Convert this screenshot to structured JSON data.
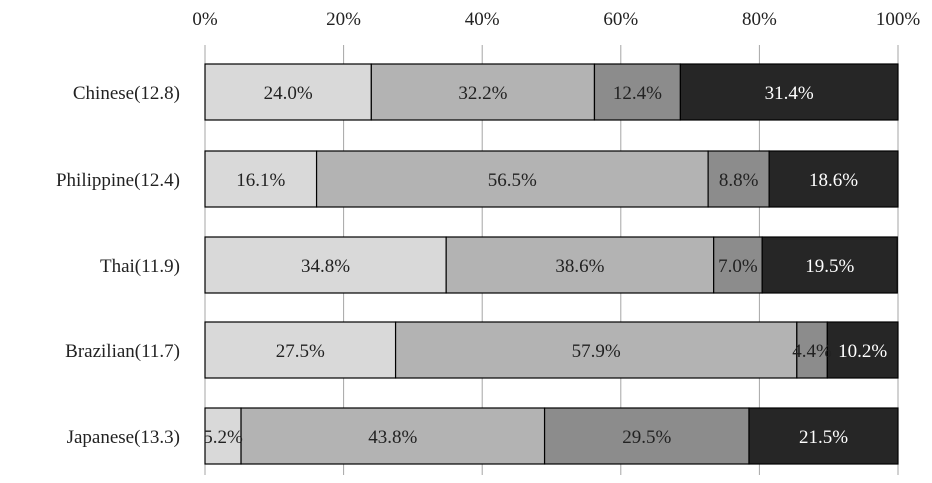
{
  "chart_data": {
    "type": "bar",
    "orientation": "horizontal",
    "stacked": true,
    "normalized": true,
    "x_tick_labels": [
      "0%",
      "20%",
      "40%",
      "60%",
      "80%",
      "100%"
    ],
    "xlim": [
      0,
      100
    ],
    "categories": [
      "Chinese(12.8)",
      "Philippine(12.4)",
      "Thai(11.9)",
      "Brazilian(11.7)",
      "Japanese(13.3)"
    ],
    "series": [
      {
        "color": "#d9d9d9",
        "text_color": "#222222",
        "values": [
          24.0,
          16.1,
          34.8,
          27.5,
          5.2
        ],
        "labels": [
          "24.0%",
          "16.1%",
          "34.8%",
          "27.5%",
          "5.2%"
        ]
      },
      {
        "color": "#b3b3b3",
        "text_color": "#222222",
        "values": [
          32.2,
          56.5,
          38.6,
          57.9,
          43.8
        ],
        "labels": [
          "32.2%",
          "56.5%",
          "38.6%",
          "57.9%",
          "43.8%"
        ]
      },
      {
        "color": "#8c8c8c",
        "text_color": "#222222",
        "values": [
          12.4,
          8.8,
          7.0,
          4.4,
          29.5
        ],
        "labels": [
          "12.4%",
          "8.8%",
          "7.0%",
          "4.4%",
          "29.5%"
        ]
      },
      {
        "color": "#262626",
        "text_color": "#ffffff",
        "values": [
          31.4,
          18.6,
          19.5,
          10.2,
          21.5
        ],
        "labels": [
          "31.4%",
          "18.6%",
          "19.5%",
          "10.2%",
          "21.5%"
        ]
      }
    ],
    "grid": "vertical",
    "legend": "none",
    "title": "",
    "xlabel": "",
    "ylabel": ""
  }
}
